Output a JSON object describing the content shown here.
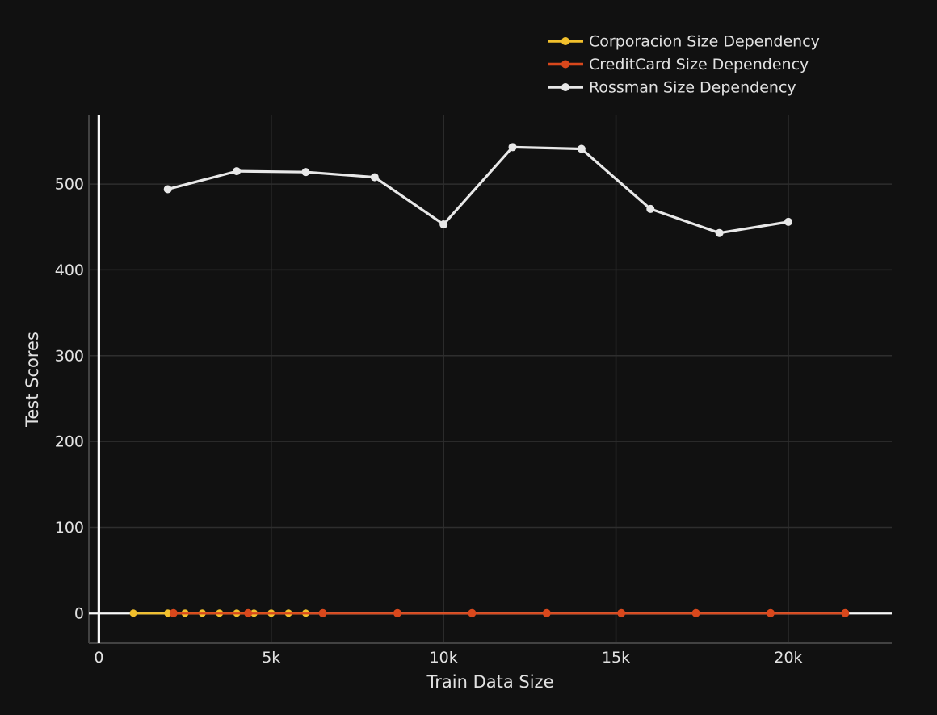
{
  "colors": {
    "background": "#111111",
    "grid_line": "#2e2e2e",
    "axis_line": "#424242",
    "zero_line": "#f8f8f8",
    "text": "#e2e2e2"
  },
  "chart_data": {
    "type": "line",
    "title": "",
    "xlabel": "Train Data Size",
    "ylabel": "Test Scores",
    "xlim": [
      -290,
      23000
    ],
    "ylim": [
      -35,
      580
    ],
    "grid": true,
    "legend_position": "top-right-above-plot",
    "x_ticks": [
      {
        "value": 0,
        "label": "0"
      },
      {
        "value": 5000,
        "label": "5k"
      },
      {
        "value": 10000,
        "label": "10k"
      },
      {
        "value": 15000,
        "label": "15k"
      },
      {
        "value": 20000,
        "label": "20k"
      }
    ],
    "y_ticks": [
      {
        "value": 0,
        "label": "0"
      },
      {
        "value": 100,
        "label": "100"
      },
      {
        "value": 200,
        "label": "200"
      },
      {
        "value": 300,
        "label": "300"
      },
      {
        "value": 400,
        "label": "400"
      },
      {
        "value": 500,
        "label": "500"
      }
    ],
    "series": [
      {
        "name": "Corporacion Size Dependency",
        "color": "#f2c02c",
        "marker": "circle",
        "x": [
          1000,
          2000,
          2500,
          3000,
          3500,
          4000,
          4500,
          5000,
          5500,
          6000
        ],
        "y": [
          0,
          0,
          0,
          0,
          0,
          0,
          0,
          0,
          0,
          0
        ]
      },
      {
        "name": "CreditCard Size Dependency",
        "color": "#d9481c",
        "marker": "circle",
        "x": [
          2165,
          4330,
          6495,
          8660,
          10825,
          12990,
          15155,
          17320,
          19485,
          21650
        ],
        "y": [
          0,
          0,
          0,
          0,
          0,
          0,
          0,
          0,
          0,
          0
        ]
      },
      {
        "name": "Rossman Size Dependency",
        "color": "#e8e8e8",
        "marker": "circle",
        "x": [
          2000,
          4000,
          6000,
          8000,
          10000,
          12000,
          14000,
          16000,
          18000,
          20000
        ],
        "y": [
          494,
          515,
          514,
          508,
          453,
          543,
          541,
          471,
          443,
          456
        ]
      }
    ]
  }
}
